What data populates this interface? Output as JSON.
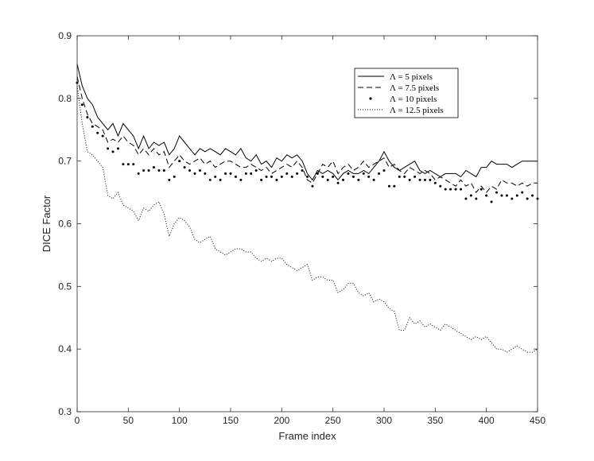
{
  "chart_data": {
    "type": "line",
    "xlabel": "Frame index",
    "ylabel": "DICE Factor",
    "xlim": [
      0,
      450
    ],
    "ylim": [
      0.3,
      0.9
    ],
    "xticks": [
      "0",
      "50",
      "100",
      "150",
      "200",
      "250",
      "300",
      "350",
      "400",
      "450"
    ],
    "yticks": [
      "0.3",
      "0.4",
      "0.5",
      "0.6",
      "0.7",
      "0.8",
      "0.9"
    ],
    "grid": false,
    "legend_position": "top-right",
    "series": [
      {
        "name": "Λ = 5 pixels",
        "style": "solid",
        "x": [
          0,
          5,
          10,
          15,
          20,
          25,
          30,
          35,
          40,
          45,
          50,
          55,
          60,
          65,
          70,
          75,
          80,
          85,
          90,
          95,
          100,
          105,
          110,
          115,
          120,
          125,
          130,
          135,
          140,
          145,
          150,
          155,
          160,
          165,
          170,
          175,
          180,
          185,
          190,
          195,
          200,
          205,
          210,
          215,
          220,
          225,
          230,
          235,
          240,
          245,
          250,
          255,
          260,
          265,
          270,
          275,
          280,
          285,
          290,
          295,
          300,
          305,
          310,
          315,
          320,
          325,
          330,
          335,
          340,
          345,
          350,
          355,
          360,
          365,
          370,
          375,
          380,
          385,
          390,
          395,
          400,
          405,
          410,
          415,
          420,
          425,
          430,
          435,
          440,
          445,
          450
        ],
        "y": [
          0.855,
          0.82,
          0.8,
          0.79,
          0.77,
          0.76,
          0.75,
          0.76,
          0.74,
          0.76,
          0.75,
          0.74,
          0.72,
          0.74,
          0.72,
          0.73,
          0.725,
          0.73,
          0.71,
          0.72,
          0.74,
          0.73,
          0.72,
          0.71,
          0.72,
          0.715,
          0.72,
          0.715,
          0.71,
          0.72,
          0.715,
          0.71,
          0.72,
          0.705,
          0.7,
          0.71,
          0.695,
          0.7,
          0.69,
          0.705,
          0.7,
          0.71,
          0.705,
          0.71,
          0.7,
          0.68,
          0.67,
          0.685,
          0.68,
          0.685,
          0.68,
          0.67,
          0.68,
          0.685,
          0.68,
          0.68,
          0.685,
          0.68,
          0.69,
          0.7,
          0.715,
          0.7,
          0.69,
          0.685,
          0.69,
          0.695,
          0.7,
          0.685,
          0.68,
          0.685,
          0.68,
          0.675,
          0.68,
          0.68,
          0.68,
          0.675,
          0.685,
          0.68,
          0.675,
          0.69,
          0.69,
          0.7,
          0.695,
          0.695,
          0.695,
          0.69,
          0.695,
          0.7,
          0.7,
          0.7,
          0.7
        ]
      },
      {
        "name": "Λ = 7.5 pixels",
        "style": "dashed",
        "x": [
          0,
          5,
          10,
          15,
          20,
          25,
          30,
          35,
          40,
          45,
          50,
          55,
          60,
          65,
          70,
          75,
          80,
          85,
          90,
          95,
          100,
          105,
          110,
          115,
          120,
          125,
          130,
          135,
          140,
          145,
          150,
          155,
          160,
          165,
          170,
          175,
          180,
          185,
          190,
          195,
          200,
          205,
          210,
          215,
          220,
          225,
          230,
          235,
          240,
          245,
          250,
          255,
          260,
          265,
          270,
          275,
          280,
          285,
          290,
          295,
          300,
          305,
          310,
          315,
          320,
          325,
          330,
          335,
          340,
          345,
          350,
          355,
          360,
          365,
          370,
          375,
          380,
          385,
          390,
          395,
          400,
          405,
          410,
          415,
          420,
          425,
          430,
          435,
          440,
          445,
          450
        ],
        "y": [
          0.835,
          0.8,
          0.775,
          0.76,
          0.755,
          0.75,
          0.73,
          0.735,
          0.73,
          0.74,
          0.73,
          0.725,
          0.71,
          0.72,
          0.71,
          0.72,
          0.71,
          0.715,
          0.69,
          0.7,
          0.71,
          0.7,
          0.695,
          0.7,
          0.705,
          0.695,
          0.7,
          0.69,
          0.695,
          0.7,
          0.7,
          0.695,
          0.69,
          0.69,
          0.695,
          0.69,
          0.685,
          0.69,
          0.68,
          0.685,
          0.69,
          0.695,
          0.69,
          0.7,
          0.69,
          0.67,
          0.665,
          0.68,
          0.695,
          0.69,
          0.7,
          0.68,
          0.69,
          0.695,
          0.685,
          0.69,
          0.7,
          0.69,
          0.695,
          0.7,
          0.705,
          0.69,
          0.695,
          0.685,
          0.68,
          0.69,
          0.685,
          0.68,
          0.685,
          0.68,
          0.67,
          0.675,
          0.67,
          0.665,
          0.66,
          0.67,
          0.66,
          0.665,
          0.65,
          0.66,
          0.65,
          0.66,
          0.655,
          0.67,
          0.665,
          0.665,
          0.66,
          0.665,
          0.66,
          0.665,
          0.665
        ]
      },
      {
        "name": "Λ = 10 pixels",
        "style": "dots",
        "x": [
          0,
          5,
          10,
          15,
          20,
          25,
          30,
          35,
          40,
          45,
          50,
          55,
          60,
          65,
          70,
          75,
          80,
          85,
          90,
          95,
          100,
          105,
          110,
          115,
          120,
          125,
          130,
          135,
          140,
          145,
          150,
          155,
          160,
          165,
          170,
          175,
          180,
          185,
          190,
          195,
          200,
          205,
          210,
          215,
          220,
          225,
          230,
          235,
          240,
          245,
          250,
          255,
          260,
          265,
          270,
          275,
          280,
          285,
          290,
          295,
          300,
          305,
          310,
          315,
          320,
          325,
          330,
          335,
          340,
          345,
          350,
          355,
          360,
          365,
          370,
          375,
          380,
          385,
          390,
          395,
          400,
          405,
          410,
          415,
          420,
          425,
          430,
          435,
          440,
          445,
          450
        ],
        "y": [
          0.825,
          0.79,
          0.77,
          0.755,
          0.745,
          0.74,
          0.72,
          0.715,
          0.72,
          0.695,
          0.695,
          0.695,
          0.68,
          0.685,
          0.685,
          0.69,
          0.685,
          0.685,
          0.67,
          0.675,
          0.7,
          0.69,
          0.685,
          0.68,
          0.685,
          0.68,
          0.67,
          0.675,
          0.67,
          0.68,
          0.68,
          0.675,
          0.67,
          0.68,
          0.68,
          0.685,
          0.67,
          0.675,
          0.675,
          0.67,
          0.675,
          0.68,
          0.675,
          0.68,
          0.685,
          0.675,
          0.66,
          0.68,
          0.675,
          0.67,
          0.675,
          0.665,
          0.67,
          0.68,
          0.675,
          0.67,
          0.68,
          0.675,
          0.67,
          0.68,
          0.685,
          0.66,
          0.66,
          0.675,
          0.675,
          0.67,
          0.675,
          0.67,
          0.67,
          0.67,
          0.665,
          0.66,
          0.655,
          0.655,
          0.655,
          0.655,
          0.64,
          0.645,
          0.64,
          0.655,
          0.645,
          0.635,
          0.65,
          0.645,
          0.645,
          0.64,
          0.645,
          0.65,
          0.64,
          0.645,
          0.64
        ]
      },
      {
        "name": "Λ = 12.5 pixels",
        "style": "dotted",
        "x": [
          0,
          5,
          10,
          15,
          20,
          25,
          30,
          35,
          40,
          45,
          50,
          55,
          60,
          65,
          70,
          75,
          80,
          85,
          90,
          95,
          100,
          105,
          110,
          115,
          120,
          125,
          130,
          135,
          140,
          145,
          150,
          155,
          160,
          165,
          170,
          175,
          180,
          185,
          190,
          195,
          200,
          205,
          210,
          215,
          220,
          225,
          230,
          235,
          240,
          245,
          250,
          255,
          260,
          265,
          270,
          275,
          280,
          285,
          290,
          295,
          300,
          305,
          310,
          315,
          320,
          325,
          330,
          335,
          340,
          345,
          350,
          355,
          360,
          365,
          370,
          375,
          380,
          385,
          390,
          395,
          400,
          405,
          410,
          415,
          420,
          425,
          430,
          435,
          440,
          445,
          450
        ],
        "y": [
          0.82,
          0.76,
          0.715,
          0.71,
          0.7,
          0.69,
          0.645,
          0.64,
          0.65,
          0.63,
          0.625,
          0.62,
          0.605,
          0.625,
          0.62,
          0.63,
          0.635,
          0.615,
          0.58,
          0.6,
          0.61,
          0.605,
          0.595,
          0.575,
          0.57,
          0.575,
          0.58,
          0.56,
          0.555,
          0.55,
          0.555,
          0.56,
          0.56,
          0.555,
          0.555,
          0.545,
          0.54,
          0.545,
          0.54,
          0.545,
          0.545,
          0.535,
          0.53,
          0.525,
          0.53,
          0.535,
          0.51,
          0.515,
          0.515,
          0.51,
          0.51,
          0.49,
          0.495,
          0.505,
          0.505,
          0.49,
          0.485,
          0.49,
          0.475,
          0.48,
          0.475,
          0.465,
          0.46,
          0.43,
          0.43,
          0.45,
          0.44,
          0.445,
          0.435,
          0.44,
          0.435,
          0.43,
          0.44,
          0.435,
          0.43,
          0.425,
          0.42,
          0.415,
          0.42,
          0.415,
          0.42,
          0.41,
          0.4,
          0.4,
          0.395,
          0.4,
          0.405,
          0.4,
          0.395,
          0.395,
          0.4
        ]
      }
    ]
  }
}
